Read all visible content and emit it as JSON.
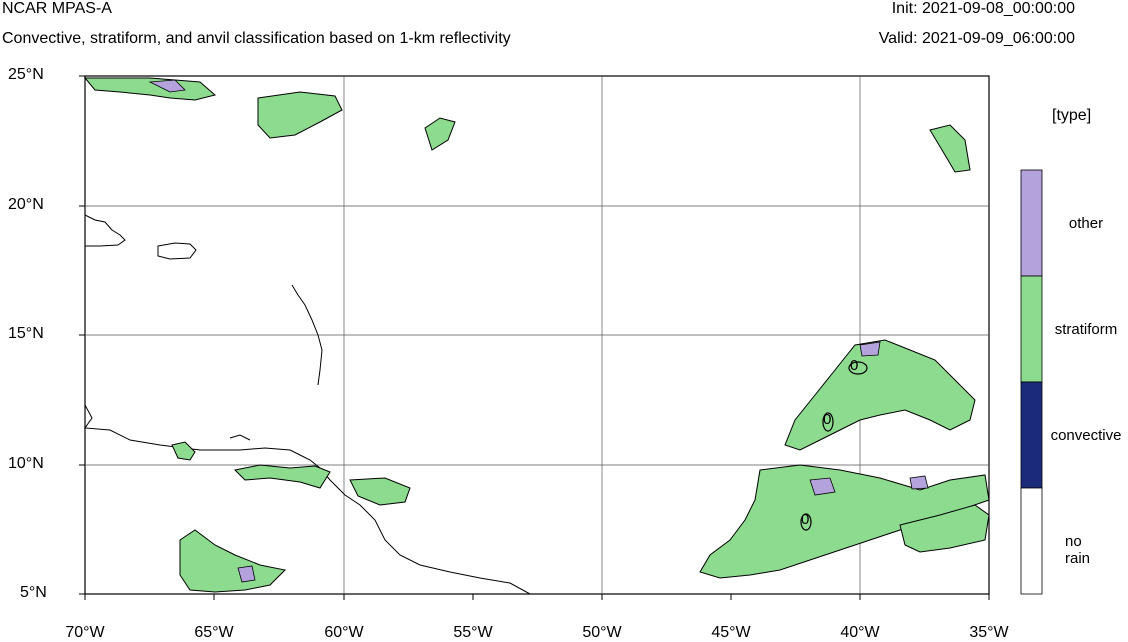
{
  "header": {
    "model": "NCAR MPAS-A",
    "description": "Convective, stratiform, and anvil classification based on 1-km reflectivity",
    "init": "Init: 2021-09-08_00:00:00",
    "valid": "Valid: 2021-09-09_06:00:00"
  },
  "map": {
    "lon_range": [
      -70,
      -35
    ],
    "lat_range": [
      5,
      25
    ],
    "lat_labels": [
      "25°N",
      "20°N",
      "15°N",
      "10°N",
      "5°N"
    ],
    "lon_labels": [
      "70°W",
      "65°W",
      "60°W",
      "55°W",
      "50°W",
      "45°W",
      "40°W",
      "35°W"
    ],
    "contour_labels": [
      "0",
      "0",
      "0"
    ],
    "grid": true
  },
  "legend": {
    "title": "[type]",
    "items": [
      {
        "label": "other",
        "color": "#b3a2db"
      },
      {
        "label": "stratiform",
        "color": "#8ddb8f"
      },
      {
        "label": "convective",
        "color": "#1b2a7b"
      },
      {
        "label": "no rain",
        "color": "#ffffff"
      }
    ]
  }
}
